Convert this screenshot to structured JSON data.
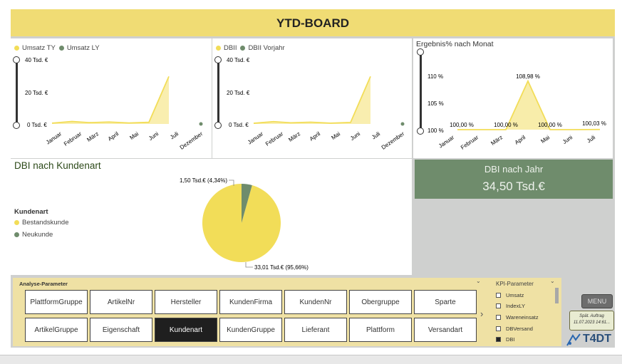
{
  "header": {
    "title": "YTD-BOARD"
  },
  "umsatz_chart": {
    "legend": [
      {
        "label": "Umsatz TY",
        "color": "#f2dd58"
      },
      {
        "label": "Umsatz LY",
        "color": "#6f8c6c"
      }
    ],
    "y_ticks": [
      "40 Tsd. €",
      "20 Tsd. €",
      "0 Tsd. €"
    ],
    "x_labels": [
      "Januar",
      "Februar",
      "März",
      "April",
      "Mai",
      "Juni",
      "Juli",
      "Dezember"
    ]
  },
  "dbi_chart": {
    "legend": [
      {
        "label": "DBII",
        "color": "#f2dd58"
      },
      {
        "label": "DBII Vorjahr",
        "color": "#6f8c6c"
      }
    ],
    "y_ticks": [
      "40 Tsd. €",
      "20 Tsd. €",
      "0 Tsd. €"
    ],
    "x_labels": [
      "Januar",
      "Februar",
      "März",
      "April",
      "Mai",
      "Juni",
      "Juli",
      "Dezember"
    ]
  },
  "ergebnis_chart": {
    "title": "Ergebnis% nach Monat",
    "y_ticks": [
      "110 %",
      "105 %",
      "100 %"
    ],
    "x_labels": [
      "Januar",
      "Februar",
      "März",
      "April",
      "Mai",
      "Juni",
      "Juli"
    ],
    "data_labels": [
      "100,00 %",
      "100,00 %",
      "108,98 %",
      "100,00 %",
      "100,03 %"
    ]
  },
  "pie": {
    "title": "DBI nach Kundenart",
    "legend_title": "Kundenart",
    "legend": [
      {
        "label": "Bestandskunde",
        "color": "#f2dd58"
      },
      {
        "label": "Neukunde",
        "color": "#6f8c6c"
      }
    ],
    "label_small": "1,50 Tsd.€ (4,34%)",
    "label_large": "33,01 Tsd.€ (95,66%)"
  },
  "dbi_card": {
    "label": "DBI nach Jahr",
    "value": "34,50 Tsd.€"
  },
  "params": {
    "title": "Analyse-Parameter",
    "row1": [
      "PlattformGruppe",
      "ArtikelNr",
      "Hersteller",
      "KundenFirma",
      "KundenNr",
      "Obergruppe",
      "Sparte"
    ],
    "row2": [
      "ArtikelGruppe",
      "Eigenschaft",
      "Kundenart",
      "KundenGruppe",
      "Lieferant",
      "Plattform",
      "Versandart"
    ],
    "selected": "Kundenart"
  },
  "kpi": {
    "title": "KPI-Parameter",
    "items": [
      {
        "label": "Umsatz",
        "checked": false
      },
      {
        "label": "IndexLY",
        "checked": false
      },
      {
        "label": "Wareneinsatz",
        "checked": false
      },
      {
        "label": "DBVersand",
        "checked": false
      },
      {
        "label": "DBI",
        "checked": true
      }
    ]
  },
  "menu": {
    "label": "MENU"
  },
  "export": {
    "line1": "Spät. Auftrag",
    "line2": "11.07.2023 14:61..."
  },
  "logo": {
    "text": "T4DT"
  },
  "chart_data": [
    {
      "type": "area",
      "categories": [
        "Januar",
        "Februar",
        "März",
        "April",
        "Mai",
        "Juni",
        "Juli",
        "Dezember"
      ],
      "series": [
        {
          "name": "Umsatz TY",
          "values": [
            0.5,
            1.5,
            0.8,
            1.2,
            0.6,
            1.0,
            29,
            null
          ]
        },
        {
          "name": "Umsatz LY",
          "values": [
            null,
            null,
            null,
            null,
            null,
            null,
            null,
            0
          ]
        }
      ],
      "ylim": [
        0,
        40
      ]
    },
    {
      "type": "area",
      "categories": [
        "Januar",
        "Februar",
        "März",
        "April",
        "Mai",
        "Juni",
        "Juli",
        "Dezember"
      ],
      "series": [
        {
          "name": "DBII",
          "values": [
            0.4,
            1.4,
            0.7,
            1.1,
            0.5,
            0.9,
            29,
            null
          ]
        },
        {
          "name": "DBII Vorjahr",
          "values": [
            null,
            null,
            null,
            null,
            null,
            null,
            null,
            0
          ]
        }
      ],
      "ylim": [
        0,
        40
      ]
    },
    {
      "type": "area",
      "title": "Ergebnis% nach Monat",
      "categories": [
        "Januar",
        "Februar",
        "März",
        "April",
        "Mai",
        "Juni",
        "Juli"
      ],
      "series": [
        {
          "values": [
            100,
            100,
            100,
            108.98,
            100,
            100,
            100.03
          ]
        }
      ],
      "ylim": [
        100,
        110
      ]
    },
    {
      "type": "pie",
      "title": "DBI nach Kundenart",
      "categories": [
        "Bestandskunde",
        "Neukunde"
      ],
      "values": [
        33.01,
        1.5
      ]
    }
  ]
}
